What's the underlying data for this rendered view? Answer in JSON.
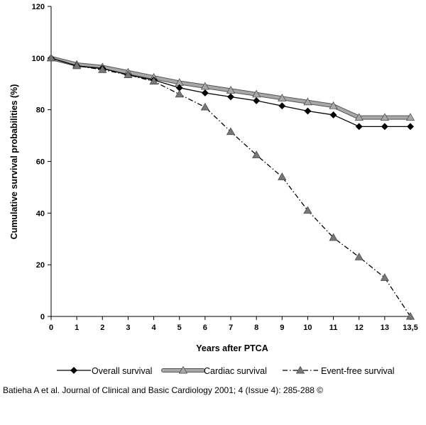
{
  "chart_data": {
    "type": "line",
    "xlabel": "Years after PTCA",
    "ylabel": "Cumulative survival probabilities (%)",
    "ylim": [
      0,
      120
    ],
    "yticks": [
      0,
      20,
      40,
      60,
      80,
      100,
      120
    ],
    "categories": [
      "0",
      "1",
      "2",
      "3",
      "4",
      "5",
      "6",
      "7",
      "8",
      "9",
      "10",
      "11",
      "12",
      "13",
      "13,5"
    ],
    "legend_position": "bottom",
    "grid": false,
    "series": [
      {
        "name": "Overall survival",
        "color": "#000000",
        "marker": "diamond",
        "line": "solid",
        "values": [
          100,
          97,
          96,
          93.5,
          91.5,
          88.5,
          86.5,
          85,
          83.5,
          81.5,
          79.5,
          78,
          73.5,
          73.5,
          73.5
        ]
      },
      {
        "name": "Cardiac survival",
        "color": "#a8a8a8",
        "marker": "triangle",
        "line": "double",
        "values": [
          100,
          97.5,
          96.5,
          94.5,
          92.5,
          90.5,
          89,
          87.5,
          86,
          84.5,
          83,
          81.5,
          77,
          77,
          77
        ]
      },
      {
        "name": "Event-free survival",
        "color": "#000000",
        "marker": "triangle",
        "line": "dash-dot",
        "values": [
          100,
          97,
          95.5,
          93.5,
          91,
          86,
          81,
          71.5,
          62.5,
          54,
          41,
          30.5,
          23,
          15,
          0
        ]
      }
    ]
  },
  "caption": "Batieha A et al. Journal of Clinical and Basic Cardiology 2001; 4 (Issue 4): 285-288 ©"
}
